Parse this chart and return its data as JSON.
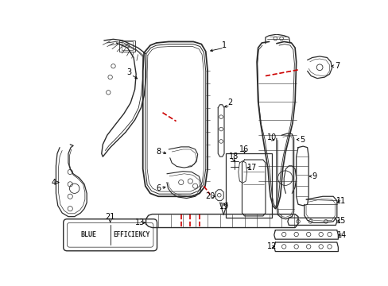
{
  "bg_color": "#ffffff",
  "line_color": "#2a2a2a",
  "red_color": "#cc0000",
  "fig_width": 4.89,
  "fig_height": 3.6,
  "dpi": 100
}
